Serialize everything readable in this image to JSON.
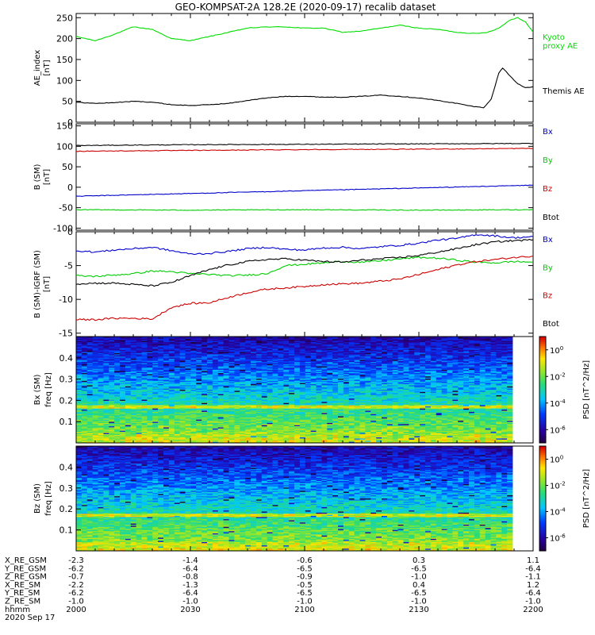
{
  "title": "GEO-KOMPSAT-2A 128.2E (2020-09-17) recalib dataset",
  "chart_data": [
    {
      "type": "line",
      "panel": "ae",
      "ylabel": "AE_index",
      "yunit": "[nT]",
      "ylim": [
        0,
        260
      ],
      "yticks": [
        0,
        50,
        100,
        150,
        200,
        250
      ],
      "xlim": [
        0,
        120
      ],
      "series": [
        {
          "name": "Kyoto proxy AE",
          "legend_lines": [
            "Kyoto",
            "proxy AE"
          ],
          "color": "#00dd00",
          "x": [
            0,
            5,
            10,
            15,
            20,
            25,
            30,
            35,
            40,
            45,
            50,
            55,
            60,
            65,
            70,
            75,
            80,
            85,
            90,
            95,
            100,
            105,
            108,
            111,
            114,
            116,
            118,
            120
          ],
          "values": [
            205,
            195,
            210,
            228,
            222,
            200,
            195,
            205,
            215,
            225,
            228,
            228,
            225,
            225,
            215,
            218,
            225,
            232,
            225,
            222,
            215,
            212,
            215,
            225,
            245,
            250,
            240,
            215
          ]
        },
        {
          "name": "Themis AE",
          "legend_lines": [
            "Themis AE"
          ],
          "color": "#000000",
          "x": [
            0,
            5,
            10,
            15,
            20,
            25,
            30,
            35,
            40,
            45,
            50,
            55,
            60,
            65,
            70,
            75,
            80,
            85,
            90,
            95,
            100,
            104,
            107,
            109,
            111,
            112,
            114,
            116,
            118,
            120
          ],
          "values": [
            48,
            45,
            47,
            50,
            48,
            42,
            40,
            42,
            45,
            52,
            58,
            62,
            62,
            60,
            60,
            62,
            65,
            62,
            58,
            52,
            45,
            38,
            35,
            55,
            118,
            130,
            110,
            92,
            82,
            85
          ]
        }
      ]
    },
    {
      "type": "line",
      "panel": "b_sm",
      "ylabel": "B (SM)",
      "yunit": "[nT]",
      "ylim": [
        -105,
        155
      ],
      "yticks": [
        -100,
        -50,
        0,
        50,
        100,
        150
      ],
      "xlim": [
        0,
        120
      ],
      "series": [
        {
          "name": "Bx",
          "color": "#0000cc",
          "x": [
            0,
            120
          ],
          "values": [
            -22,
            5
          ]
        },
        {
          "name": "By",
          "color": "#00cc00",
          "x": [
            0,
            30,
            60,
            90,
            120
          ],
          "values": [
            -55,
            -56,
            -55,
            -56,
            -55
          ]
        },
        {
          "name": "Bz",
          "color": "#cc0000",
          "x": [
            0,
            30,
            60,
            90,
            120
          ],
          "values": [
            88,
            90,
            92,
            93,
            95
          ]
        },
        {
          "name": "Btot",
          "color": "#000000",
          "x": [
            0,
            30,
            60,
            90,
            120
          ],
          "values": [
            102,
            104,
            105,
            106,
            107
          ]
        }
      ]
    },
    {
      "type": "line",
      "panel": "b_minus_igrf",
      "ylabel": "B (SM)-IGRF (SM)",
      "yunit": "[nT]",
      "ylim": [
        -15.5,
        0
      ],
      "yticks": [
        -15,
        -10,
        -5,
        0
      ],
      "xlim": [
        0,
        120
      ],
      "series": [
        {
          "name": "Bx",
          "color": "#0000cc",
          "x": [
            0,
            5,
            10,
            15,
            20,
            25,
            30,
            35,
            40,
            45,
            50,
            55,
            60,
            65,
            70,
            75,
            80,
            85,
            90,
            95,
            100,
            105,
            110,
            115,
            120
          ],
          "values": [
            -2.8,
            -3.0,
            -2.7,
            -2.5,
            -2.3,
            -2.8,
            -3.3,
            -3.2,
            -2.9,
            -2.5,
            -2.3,
            -2.6,
            -2.7,
            -2.4,
            -2.3,
            -2.5,
            -2.2,
            -2.0,
            -1.7,
            -1.2,
            -1.0,
            -0.4,
            -0.6,
            -0.9,
            -0.7
          ]
        },
        {
          "name": "By",
          "color": "#00cc00",
          "x": [
            0,
            5,
            10,
            15,
            20,
            25,
            30,
            35,
            40,
            45,
            50,
            55,
            60,
            65,
            70,
            75,
            80,
            85,
            90,
            95,
            100,
            105,
            110,
            115,
            120
          ],
          "values": [
            -6.5,
            -6.6,
            -6.4,
            -6.2,
            -5.8,
            -5.9,
            -6.2,
            -6.3,
            -6.5,
            -6.4,
            -6.2,
            -5.0,
            -4.8,
            -4.6,
            -4.4,
            -4.5,
            -4.3,
            -4.0,
            -3.8,
            -3.9,
            -4.2,
            -4.5,
            -4.6,
            -4.4,
            -4.5
          ]
        },
        {
          "name": "Bz",
          "color": "#cc0000",
          "x": [
            0,
            5,
            10,
            15,
            20,
            25,
            30,
            35,
            40,
            45,
            50,
            55,
            60,
            65,
            70,
            75,
            80,
            85,
            90,
            95,
            100,
            105,
            110,
            115,
            120
          ],
          "values": [
            -13.0,
            -13.0,
            -12.8,
            -12.8,
            -12.9,
            -11.2,
            -10.6,
            -10.5,
            -9.7,
            -9.0,
            -8.5,
            -8.3,
            -8.1,
            -7.8,
            -7.7,
            -7.6,
            -7.3,
            -7.0,
            -6.3,
            -5.6,
            -4.9,
            -4.4,
            -4.1,
            -3.8,
            -3.6
          ]
        },
        {
          "name": "Btot",
          "color": "#000000",
          "x": [
            0,
            5,
            10,
            15,
            20,
            25,
            30,
            35,
            40,
            45,
            50,
            55,
            60,
            65,
            70,
            75,
            80,
            85,
            90,
            95,
            100,
            105,
            110,
            115,
            120
          ],
          "values": [
            -7.7,
            -7.6,
            -7.6,
            -7.8,
            -8.0,
            -7.5,
            -6.5,
            -5.6,
            -4.9,
            -4.4,
            -4.1,
            -4.0,
            -4.2,
            -4.4,
            -4.5,
            -4.2,
            -4.0,
            -3.8,
            -3.5,
            -3.0,
            -2.5,
            -1.9,
            -1.5,
            -1.3,
            -1.2
          ]
        }
      ]
    },
    {
      "type": "heatmap",
      "panel": "spec_bx",
      "ylabel": "Bx (SM)",
      "yunit": "freq [Hz]",
      "ylim": [
        0,
        0.5
      ],
      "yticks": [
        0.1,
        0.2,
        0.3,
        0.4
      ],
      "colorbar_label": "PSD [nT^2/Hz]",
      "colorbar_ticks": [
        "10^0",
        "10^-2",
        "10^-4",
        "10^-6"
      ],
      "colorbar_log_range": [
        -7,
        1
      ]
    },
    {
      "type": "heatmap",
      "panel": "spec_bz",
      "ylabel": "Bz (SM)",
      "yunit": "freq [Hz]",
      "ylim": [
        0,
        0.5
      ],
      "yticks": [
        0.1,
        0.2,
        0.3,
        0.4
      ],
      "colorbar_label": "PSD [nT^2/Hz]",
      "colorbar_ticks": [
        "10^0",
        "10^-2",
        "10^-4",
        "10^-6"
      ],
      "colorbar_log_range": [
        -7,
        1
      ]
    }
  ],
  "ephemeris": {
    "rows": [
      {
        "label": "X_RE_GSM",
        "values": [
          "-2.3",
          "-1.4",
          "-0.6",
          "0.3",
          "1.1"
        ]
      },
      {
        "label": "Y_RE_GSM",
        "values": [
          "-6.2",
          "-6.4",
          "-6.5",
          "-6.5",
          "-6.4"
        ]
      },
      {
        "label": "Z_RE_GSM",
        "values": [
          "-0.7",
          "-0.8",
          "-0.9",
          "-1.0",
          "-1.1"
        ]
      },
      {
        "label": "X_RE_SM",
        "values": [
          "-2.2",
          "-1.3",
          "-0.5",
          "0.4",
          "1.2"
        ]
      },
      {
        "label": "Y_RE_SM",
        "values": [
          "-6.2",
          "-6.4",
          "-6.5",
          "-6.5",
          "-6.4"
        ]
      },
      {
        "label": "Z_RE_SM",
        "values": [
          "-1.0",
          "-1.0",
          "-1.0",
          "-1.0",
          "-1.0"
        ]
      },
      {
        "label": "hhmm",
        "values": [
          "2000",
          "2030",
          "2100",
          "2130",
          "2200"
        ]
      }
    ],
    "date": "2020 Sep 17"
  }
}
